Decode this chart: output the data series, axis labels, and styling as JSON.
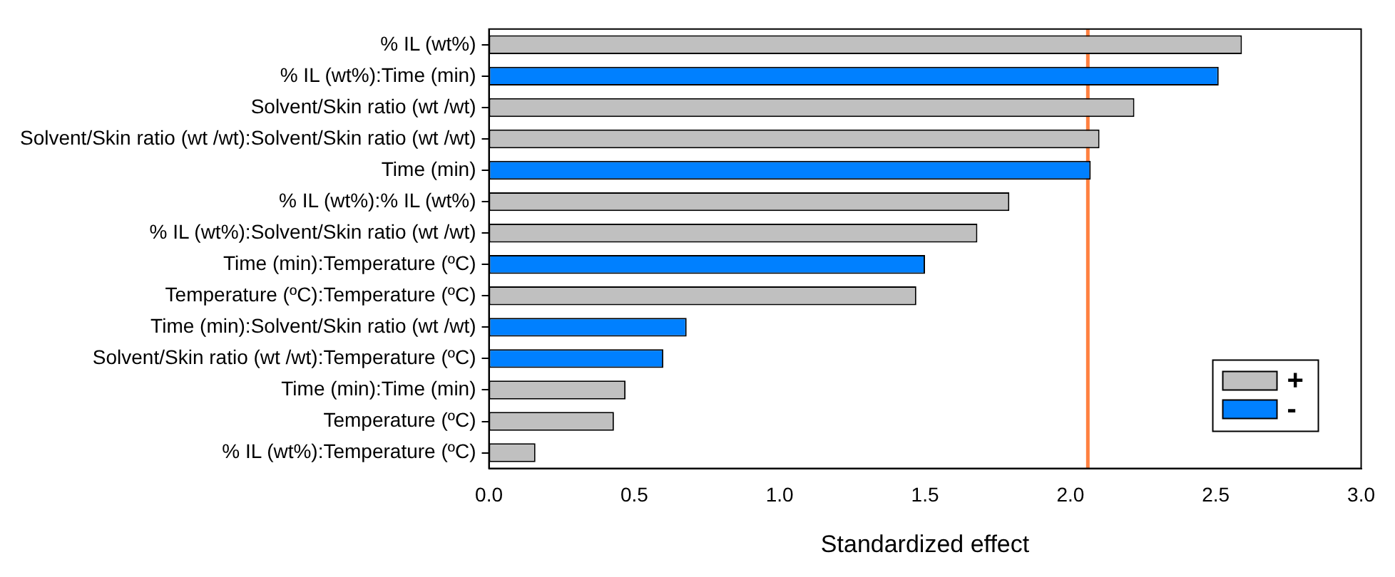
{
  "chart_data": {
    "type": "bar",
    "orientation": "horizontal",
    "stacked": true,
    "xlabel": "Standardized effect",
    "categories": [
      "% IL (wt%)",
      "% IL (wt%):Time (min)",
      "Solvent/Skin ratio (wt /wt)",
      "Solvent/Skin ratio (wt /wt):Solvent/Skin ratio (wt /wt)",
      "Time (min)",
      "% IL (wt%):% IL (wt%)",
      "% IL (wt%):Solvent/Skin ratio (wt /wt)",
      "Time (min):Temperature (ºC)",
      "Temperature (ºC):Temperature (ºC)",
      "Time (min):Solvent/Skin ratio (wt /wt)",
      "Solvent/Skin ratio (wt /wt):Temperature (ºC)",
      "Time (min):Time (min)",
      "Temperature (ºC)",
      "% IL (wt%):Temperature (ºC)"
    ],
    "series": [
      {
        "name": "+",
        "color": "#c0c0c0",
        "values": [
          2.59,
          null,
          2.22,
          2.1,
          null,
          1.79,
          1.68,
          null,
          1.47,
          null,
          null,
          0.47,
          0.43,
          0.16
        ]
      },
      {
        "name": "-",
        "color": "#0080ff",
        "values": [
          null,
          2.51,
          null,
          null,
          2.07,
          null,
          null,
          1.5,
          null,
          0.68,
          0.6,
          null,
          null,
          null
        ]
      }
    ],
    "xlim": [
      0,
      3
    ],
    "xticks": [
      {
        "value": 0,
        "label": "0.0"
      },
      {
        "value": 0.5,
        "label": "0.5"
      },
      {
        "value": 1,
        "label": "1.0"
      },
      {
        "value": 1.5,
        "label": "1.5"
      },
      {
        "value": 2,
        "label": "2.0"
      },
      {
        "value": 2.5,
        "label": "2.5"
      },
      {
        "value": 3,
        "label": "3.0"
      }
    ],
    "ref_lines": [
      {
        "axis": "x",
        "value": 2.06,
        "color": "#ff8040"
      }
    ],
    "legend": "bottom right",
    "grid": false
  }
}
